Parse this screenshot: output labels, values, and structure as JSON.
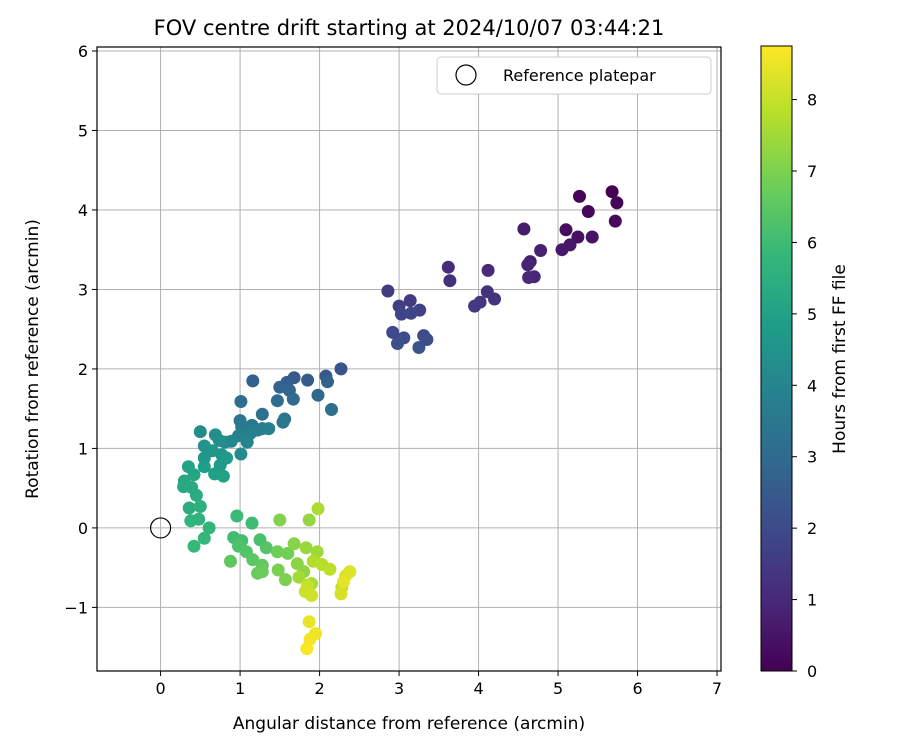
{
  "chart_data": {
    "type": "scatter",
    "title": "FOV centre drift starting at 2024/10/07 03:44:21",
    "xlabel": "Angular distance from reference (arcmin)",
    "ylabel": "Rotation from reference (arcmin)",
    "xlim": [
      -0.8,
      7.05
    ],
    "ylim": [
      -1.8,
      6.05
    ],
    "xticks": [
      0,
      1,
      2,
      3,
      4,
      5,
      6,
      7
    ],
    "yticks": [
      -1,
      0,
      1,
      2,
      3,
      4,
      5,
      6
    ],
    "xtick_labels": [
      "0",
      "1",
      "2",
      "3",
      "4",
      "5",
      "6",
      "7"
    ],
    "ytick_labels": [
      "−1",
      "0",
      "1",
      "2",
      "3",
      "4",
      "5",
      "6"
    ],
    "grid": true,
    "legend": {
      "placement": "upper right",
      "entries": [
        "Reference platepar"
      ]
    },
    "reference_point": {
      "x": 0,
      "y": 0,
      "marker": "open circle"
    },
    "colorbar": {
      "label": "Hours from first FF file",
      "range": [
        0,
        8.75
      ],
      "ticks": [
        0,
        1,
        2,
        3,
        4,
        5,
        6,
        7,
        8
      ],
      "tick_labels": [
        "0",
        "1",
        "2",
        "3",
        "4",
        "5",
        "6",
        "7",
        "8"
      ],
      "colormap": "viridis",
      "colors": [
        "#440154",
        "#482878",
        "#3e4989",
        "#31688e",
        "#26828e",
        "#1f9e89",
        "#35b779",
        "#6ece58",
        "#b5de2b",
        "#fde725"
      ]
    },
    "points": [
      [
        5.68,
        4.23,
        0.0
      ],
      [
        5.74,
        4.09,
        0.07
      ],
      [
        5.27,
        4.17,
        0.13
      ],
      [
        5.38,
        3.98,
        0.2
      ],
      [
        5.72,
        3.86,
        0.26
      ],
      [
        5.1,
        3.75,
        0.33
      ],
      [
        5.25,
        3.66,
        0.4
      ],
      [
        5.43,
        3.66,
        0.46
      ],
      [
        5.15,
        3.56,
        0.53
      ],
      [
        5.05,
        3.5,
        0.6
      ],
      [
        4.57,
        3.76,
        0.66
      ],
      [
        4.65,
        3.35,
        0.73
      ],
      [
        4.78,
        3.49,
        0.8
      ],
      [
        4.62,
        3.31,
        0.86
      ],
      [
        4.7,
        3.16,
        0.93
      ],
      [
        4.63,
        3.15,
        1.0
      ],
      [
        4.12,
        3.24,
        1.06
      ],
      [
        3.62,
        3.28,
        1.13
      ],
      [
        3.64,
        3.11,
        1.2
      ],
      [
        4.11,
        2.97,
        1.26
      ],
      [
        4.2,
        2.88,
        1.33
      ],
      [
        4.02,
        2.84,
        1.4
      ],
      [
        3.95,
        2.79,
        1.46
      ],
      [
        3.14,
        2.86,
        1.53
      ],
      [
        2.86,
        2.98,
        1.6
      ],
      [
        3.0,
        2.79,
        1.66
      ],
      [
        3.26,
        2.74,
        1.73
      ],
      [
        3.03,
        2.69,
        1.8
      ],
      [
        3.15,
        2.7,
        1.86
      ],
      [
        2.92,
        2.46,
        1.93
      ],
      [
        3.31,
        2.42,
        2.0
      ],
      [
        3.06,
        2.39,
        2.06
      ],
      [
        3.35,
        2.37,
        2.13
      ],
      [
        2.98,
        2.32,
        2.2
      ],
      [
        3.25,
        2.27,
        2.26
      ],
      [
        2.27,
        2.0,
        2.33
      ],
      [
        2.08,
        1.91,
        2.4
      ],
      [
        1.68,
        1.89,
        2.46
      ],
      [
        1.85,
        1.86,
        2.53
      ],
      [
        1.59,
        1.83,
        2.6
      ],
      [
        1.16,
        1.85,
        2.66
      ],
      [
        2.1,
        1.84,
        2.73
      ],
      [
        1.5,
        1.77,
        2.8
      ],
      [
        1.62,
        1.73,
        2.86
      ],
      [
        1.98,
        1.67,
        2.93
      ],
      [
        1.67,
        1.62,
        3.0
      ],
      [
        1.47,
        1.6,
        3.06
      ],
      [
        1.01,
        1.59,
        3.13
      ],
      [
        2.15,
        1.49,
        3.2
      ],
      [
        1.28,
        1.43,
        3.26
      ],
      [
        1.56,
        1.37,
        3.33
      ],
      [
        1.0,
        1.35,
        3.4
      ],
      [
        1.54,
        1.33,
        3.46
      ],
      [
        1.15,
        1.29,
        3.53
      ],
      [
        1.02,
        1.27,
        3.6
      ],
      [
        1.28,
        1.25,
        3.66
      ],
      [
        1.22,
        1.23,
        3.73
      ],
      [
        1.36,
        1.25,
        3.8
      ],
      [
        1.13,
        1.19,
        3.86
      ],
      [
        0.98,
        1.16,
        3.93
      ],
      [
        1.09,
        1.08,
        4.0
      ],
      [
        0.89,
        1.09,
        4.06
      ],
      [
        0.81,
        1.08,
        4.13
      ],
      [
        1.01,
        0.93,
        4.2
      ],
      [
        0.5,
        1.21,
        4.26
      ],
      [
        0.69,
        1.17,
        4.33
      ],
      [
        0.74,
        1.1,
        4.4
      ],
      [
        0.55,
        1.03,
        4.46
      ],
      [
        0.77,
        0.92,
        4.53
      ],
      [
        0.65,
        0.97,
        4.6
      ],
      [
        0.55,
        0.88,
        4.66
      ],
      [
        0.83,
        0.88,
        4.73
      ],
      [
        0.75,
        0.79,
        4.8
      ],
      [
        0.55,
        0.77,
        4.86
      ],
      [
        0.68,
        0.68,
        4.93
      ],
      [
        0.79,
        0.65,
        5.0
      ],
      [
        0.35,
        0.77,
        5.06
      ],
      [
        0.42,
        0.67,
        5.13
      ],
      [
        0.3,
        0.59,
        5.2
      ],
      [
        0.29,
        0.52,
        5.26
      ],
      [
        0.39,
        0.51,
        5.33
      ],
      [
        0.45,
        0.41,
        5.4
      ],
      [
        0.36,
        0.25,
        5.46
      ],
      [
        0.5,
        0.27,
        5.53
      ],
      [
        0.48,
        0.11,
        5.6
      ],
      [
        0.38,
        0.09,
        5.66
      ],
      [
        0.61,
        0.0,
        5.73
      ],
      [
        0.55,
        -0.13,
        5.8
      ],
      [
        0.42,
        -0.23,
        5.86
      ],
      [
        0.96,
        0.15,
        5.93
      ],
      [
        1.15,
        0.06,
        6.0
      ],
      [
        0.92,
        -0.12,
        6.06
      ],
      [
        1.02,
        -0.16,
        6.13
      ],
      [
        1.25,
        -0.15,
        6.2
      ],
      [
        0.98,
        -0.23,
        6.26
      ],
      [
        1.08,
        -0.3,
        6.33
      ],
      [
        1.33,
        -0.25,
        6.4
      ],
      [
        1.16,
        -0.4,
        6.46
      ],
      [
        0.88,
        -0.42,
        6.53
      ],
      [
        1.28,
        -0.47,
        6.6
      ],
      [
        1.22,
        -0.57,
        6.66
      ],
      [
        1.28,
        -0.55,
        6.73
      ],
      [
        1.47,
        -0.3,
        6.8
      ],
      [
        1.6,
        -0.32,
        6.86
      ],
      [
        1.48,
        -0.53,
        6.93
      ],
      [
        1.57,
        -0.65,
        7.0
      ],
      [
        1.5,
        0.1,
        7.06
      ],
      [
        1.68,
        -0.2,
        7.13
      ],
      [
        1.72,
        -0.45,
        7.2
      ],
      [
        1.8,
        -0.55,
        7.26
      ],
      [
        1.87,
        0.1,
        7.33
      ],
      [
        1.83,
        -0.25,
        7.4
      ],
      [
        1.97,
        -0.3,
        7.46
      ],
      [
        1.74,
        -0.62,
        7.53
      ],
      [
        1.9,
        -0.7,
        7.6
      ],
      [
        1.98,
        0.24,
        7.66
      ],
      [
        1.92,
        -0.42,
        7.73
      ],
      [
        2.03,
        -0.46,
        7.8
      ],
      [
        2.13,
        -0.52,
        7.86
      ],
      [
        2.28,
        -0.75,
        7.93
      ],
      [
        1.85,
        -0.72,
        8.0
      ],
      [
        1.82,
        -0.8,
        8.06
      ],
      [
        1.9,
        -0.85,
        8.13
      ],
      [
        2.27,
        -0.83,
        8.2
      ],
      [
        2.33,
        -0.6,
        8.26
      ],
      [
        2.38,
        -0.55,
        8.33
      ],
      [
        2.3,
        -0.68,
        8.4
      ],
      [
        1.87,
        -1.18,
        8.46
      ],
      [
        1.95,
        -1.33,
        8.53
      ],
      [
        1.88,
        -1.4,
        8.6
      ],
      [
        1.84,
        -1.52,
        8.7
      ]
    ]
  }
}
